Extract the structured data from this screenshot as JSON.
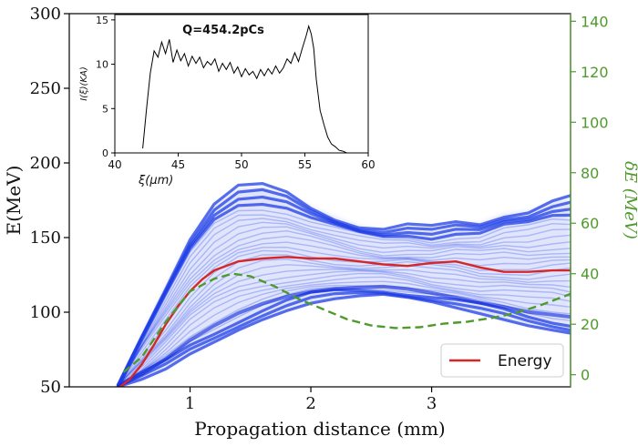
{
  "chart_data": [
    {
      "type": "line",
      "role": "main",
      "xlabel": "Propagation distance (mm)",
      "ylabel": "E(MeV)",
      "y2label": "δE (MeV)",
      "xlim": [
        0.0,
        4.15
      ],
      "ylim": [
        50,
        300
      ],
      "y2lim": [
        -4.8,
        143
      ],
      "xticks": [
        1,
        2,
        3
      ],
      "yticks": [
        50,
        100,
        150,
        200,
        250,
        300
      ],
      "y2ticks": [
        0,
        20,
        40,
        60,
        80,
        100,
        120,
        140
      ],
      "colors": {
        "energy": "#d62728",
        "spread": "#4f9a2c",
        "axis2": "#4f9a2c",
        "beam": "#1f3ee6"
      },
      "beam_envelope": {
        "x": [
          0.4,
          0.6,
          0.8,
          1.0,
          1.2,
          1.4,
          1.6,
          1.8,
          2.0,
          2.2,
          2.4,
          2.6,
          2.8,
          3.0,
          3.2,
          3.4,
          3.6,
          3.8,
          4.0,
          4.15
        ],
        "upper": [
          50,
          85,
          118,
          150,
          172,
          183,
          184,
          180,
          171,
          164,
          158,
          155,
          157,
          156,
          160,
          160,
          166,
          168,
          174,
          176
        ],
        "lower": [
          50,
          55,
          62,
          72,
          80,
          88,
          95,
          101,
          106,
          109,
          111,
          112,
          110,
          107,
          103,
          99,
          95,
          91,
          88,
          86
        ]
      },
      "series": [
        {
          "name": "Energy",
          "style": "solid",
          "axis": "left",
          "x": [
            0.42,
            0.5,
            0.6,
            0.7,
            0.8,
            0.9,
            1.0,
            1.1,
            1.2,
            1.4,
            1.6,
            1.8,
            2.0,
            2.2,
            2.4,
            2.6,
            2.8,
            3.0,
            3.2,
            3.4,
            3.6,
            3.8,
            4.0,
            4.15
          ],
          "values": [
            50,
            55,
            65,
            78,
            92,
            104,
            114,
            122,
            128,
            134,
            136,
            137,
            136,
            136,
            134,
            132,
            131,
            133,
            134,
            130,
            127,
            127,
            128,
            128
          ]
        },
        {
          "style": "dashed",
          "axis": "right",
          "x": [
            0.45,
            0.6,
            0.8,
            1.0,
            1.2,
            1.35,
            1.5,
            1.7,
            1.9,
            2.1,
            2.3,
            2.5,
            2.7,
            2.9,
            3.1,
            3.3,
            3.5,
            3.7,
            3.9,
            4.15
          ],
          "values": [
            1,
            7,
            21,
            33,
            38,
            40,
            39,
            35,
            30,
            26,
            22,
            19.5,
            18.5,
            18.8,
            20.2,
            21,
            22.5,
            24.5,
            27.5,
            32
          ]
        }
      ]
    },
    {
      "type": "line",
      "role": "inset",
      "title": "Q=454.2pCs",
      "xlabel": "ξ(μm)",
      "ylabel": "I(ξ)(KA)",
      "xlim": [
        40,
        60
      ],
      "ylim": [
        0,
        15.6
      ],
      "xticks": [
        40,
        45,
        50,
        55,
        60
      ],
      "yticks": [
        0,
        5,
        10,
        15
      ],
      "x": [
        42.2,
        42.5,
        42.8,
        43.1,
        43.4,
        43.7,
        44.0,
        44.3,
        44.6,
        44.9,
        45.2,
        45.5,
        45.8,
        46.1,
        46.4,
        46.7,
        47.0,
        47.3,
        47.6,
        47.9,
        48.2,
        48.5,
        48.8,
        49.1,
        49.4,
        49.7,
        50.0,
        50.3,
        50.6,
        50.9,
        51.2,
        51.5,
        51.8,
        52.1,
        52.4,
        52.7,
        53.0,
        53.3,
        53.6,
        53.9,
        54.2,
        54.5,
        54.8,
        55.1,
        55.3,
        55.5,
        55.7,
        55.9,
        56.2,
        56.5,
        56.8,
        57.1,
        57.4,
        57.7,
        58.0,
        58.3
      ],
      "values": [
        0.5,
        5,
        9,
        11.5,
        10.8,
        12.5,
        11.2,
        12.8,
        10.2,
        11.6,
        10.4,
        11.2,
        9.8,
        10.9,
        10.1,
        10.8,
        9.6,
        10.3,
        9.9,
        10.6,
        9.2,
        10.1,
        9.4,
        10.2,
        9.0,
        9.7,
        8.6,
        9.5,
        8.8,
        9.2,
        8.4,
        9.4,
        8.7,
        9.5,
        8.9,
        9.8,
        9.0,
        9.6,
        10.6,
        10.1,
        11.3,
        10.3,
        11.8,
        13.2,
        14.3,
        13.4,
        11.8,
        8.3,
        4.8,
        3.2,
        1.8,
        1.0,
        0.7,
        0.3,
        0.2,
        0.0
      ]
    }
  ]
}
